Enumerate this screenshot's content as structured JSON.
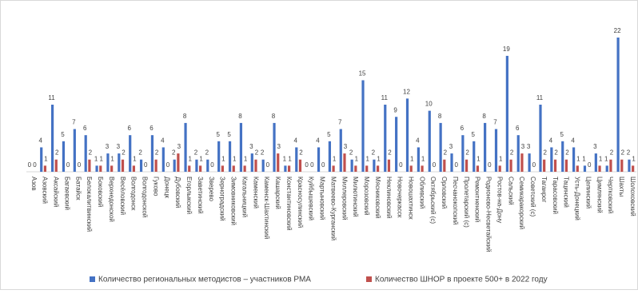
{
  "chart_data": {
    "type": "bar",
    "categories": [
      "Азов",
      "Азовский",
      "Аксайский",
      "Багаевский",
      "Батайск",
      "Белокалитвинский",
      "Боковский",
      "Верхнедонской",
      "Весёловский",
      "Волгодонск",
      "Волгодонской",
      "Гуково",
      "Донецк",
      "Дубовский",
      "Егорлыкский",
      "Заветинский",
      "Зверево",
      "Зерноградский",
      "Зимовниковский",
      "Кагальницкий",
      "Каменский",
      "Каменск-Шахтинский",
      "Кашарский",
      "Константиновский",
      "Красносулинский",
      "Куйбышевский",
      "Мартыновский",
      "Матвеево-Курганский",
      "Миллеровский",
      "Милютинский",
      "Морозовский",
      "Мясниковский",
      "Неклиновский",
      "Новочеркасск",
      "Новошахтинск",
      "Обливский",
      "Октябрьский (с)",
      "Орловский",
      "Песчанокопский",
      "Пролетарский (с)",
      "Ремонтненский",
      "Родионово-Несветайский",
      "Ростов-на-Дону",
      "Сальский",
      "Семикаракорский",
      "Советский (с)",
      "Таганрог",
      "Тарасовский",
      "Тацинский",
      "Усть-Донецкий",
      "Целинский",
      "Цимлянский",
      "Чертковский",
      "Шахты",
      "Шолоховский"
    ],
    "series": [
      {
        "name": "Количество региональных методистов – участников РМА",
        "color": "#4472c4",
        "values": [
          0,
          4,
          11,
          5,
          7,
          6,
          1,
          3,
          3,
          6,
          2,
          6,
          4,
          2,
          8,
          2,
          2,
          5,
          5,
          8,
          3,
          2,
          8,
          1,
          4,
          0,
          4,
          5,
          7,
          2,
          15,
          2,
          11,
          9,
          12,
          4,
          10,
          8,
          3,
          6,
          5,
          8,
          7,
          19,
          6,
          3,
          11,
          4,
          5,
          4,
          1,
          3,
          1,
          22,
          2
        ]
      },
      {
        "name": "Количество ШНОР в проекте 500+ в 2022 году",
        "color": "#c0504d",
        "values": [
          0,
          1,
          2,
          0,
          0,
          2,
          1,
          1,
          2,
          1,
          0,
          2,
          0,
          3,
          1,
          1,
          0,
          1,
          1,
          1,
          2,
          0,
          3,
          1,
          2,
          0,
          0,
          1,
          3,
          1,
          1,
          1,
          2,
          0,
          1,
          1,
          0,
          2,
          0,
          2,
          1,
          0,
          1,
          2,
          3,
          0,
          2,
          2,
          2,
          1,
          0,
          1,
          2,
          2,
          1
        ]
      }
    ],
    "legend": "bottom"
  }
}
